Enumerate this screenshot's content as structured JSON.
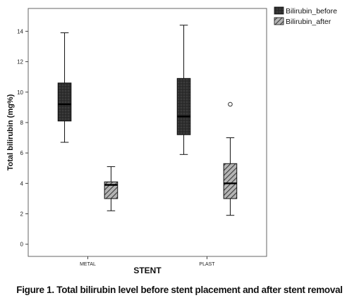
{
  "caption": "Figure 1. Total bilirubin level before stent placement and after stent removal",
  "chart_data": {
    "type": "box",
    "title": "",
    "xlabel": "STENT",
    "ylabel": "Total bilirubin (mg%)",
    "categories": [
      "METAL",
      "PLAST"
    ],
    "yticks": [
      "0",
      "2",
      "4",
      "6",
      "8",
      "10",
      "12",
      "14"
    ],
    "ylim": [
      -0.8,
      15.5
    ],
    "legend_position": "top-right, outside plot",
    "grid": false,
    "series": [
      {
        "name": "Bilirubin_before",
        "color": "#2e2e2e",
        "pattern": "dark-dotted",
        "boxes": [
          {
            "category": "METAL",
            "whisker_low": 6.7,
            "q1": 8.1,
            "median": 9.2,
            "q3": 10.6,
            "whisker_high": 13.9,
            "outliers": []
          },
          {
            "category": "PLAST",
            "whisker_low": 5.9,
            "q1": 7.2,
            "median": 8.4,
            "q3": 10.9,
            "whisker_high": 14.4,
            "outliers": []
          }
        ]
      },
      {
        "name": "Bilirubin_after",
        "color": "#8a8a8a",
        "pattern": "diagonal-hatch",
        "boxes": [
          {
            "category": "METAL",
            "whisker_low": 2.2,
            "q1": 3.0,
            "median": 3.9,
            "q3": 4.1,
            "whisker_high": 5.1,
            "outliers": []
          },
          {
            "category": "PLAST",
            "whisker_low": 1.9,
            "q1": 3.0,
            "median": 4.0,
            "q3": 5.3,
            "whisker_high": 7.0,
            "outliers": [
              9.2
            ]
          }
        ]
      }
    ]
  }
}
